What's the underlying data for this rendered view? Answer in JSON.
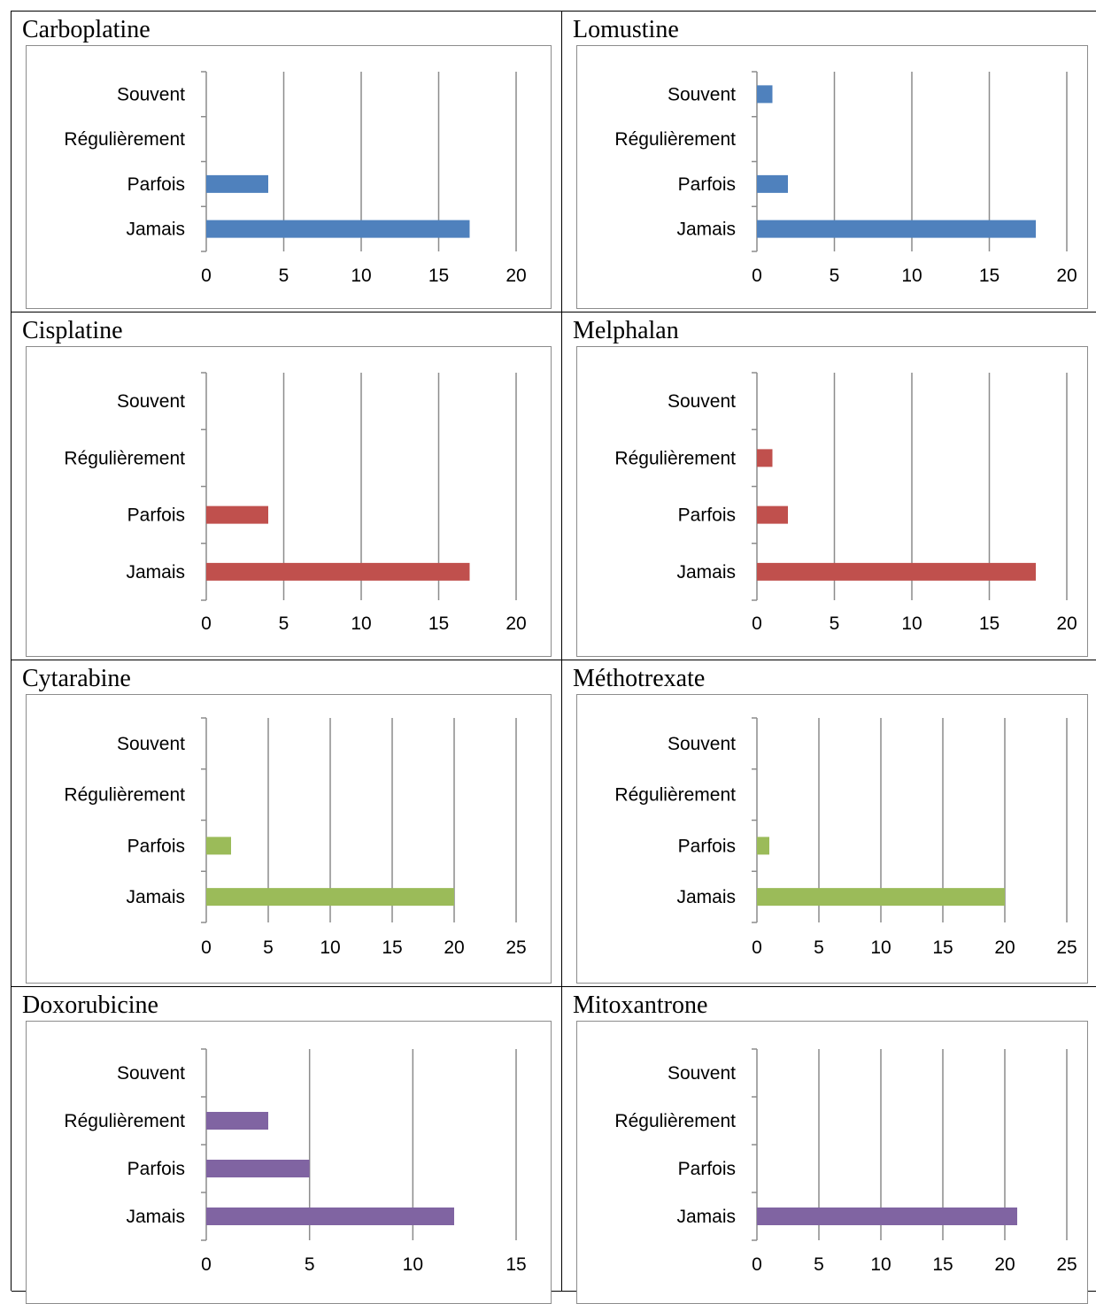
{
  "colors": {
    "blue": "#4f81bd",
    "red": "#c0504d",
    "green": "#9bbb59",
    "purple": "#8064a2",
    "grid": "#8c8c8c"
  },
  "panels": [
    {
      "title": "Carboplatine",
      "color": "blue"
    },
    {
      "title": "Lomustine",
      "color": "blue"
    },
    {
      "title": "Cisplatine",
      "color": "red"
    },
    {
      "title": "Melphalan",
      "color": "red"
    },
    {
      "title": "Cytarabine",
      "color": "green"
    },
    {
      "title": "Méthotrexate",
      "color": "green"
    },
    {
      "title": "Doxorubicine",
      "color": "purple"
    },
    {
      "title": "Mitoxantrone",
      "color": "purple"
    }
  ],
  "chart_data": [
    {
      "type": "bar",
      "orientation": "horizontal",
      "categories": [
        "Jamais",
        "Parfois",
        "Régulièrement",
        "Souvent"
      ],
      "values": [
        17,
        4,
        0,
        0
      ],
      "xlim": [
        0,
        20
      ],
      "xticks": [
        0,
        5,
        10,
        15,
        20
      ],
      "grid": true
    },
    {
      "type": "bar",
      "orientation": "horizontal",
      "categories": [
        "Jamais",
        "Parfois",
        "Régulièrement",
        "Souvent"
      ],
      "values": [
        18,
        2,
        0,
        1
      ],
      "xlim": [
        0,
        20
      ],
      "xticks": [
        0,
        5,
        10,
        15,
        20
      ],
      "grid": true
    },
    {
      "type": "bar",
      "orientation": "horizontal",
      "categories": [
        "Jamais",
        "Parfois",
        "Régulièrement",
        "Souvent"
      ],
      "values": [
        17,
        4,
        0,
        0
      ],
      "xlim": [
        0,
        20
      ],
      "xticks": [
        0,
        5,
        10,
        15,
        20
      ],
      "grid": true
    },
    {
      "type": "bar",
      "orientation": "horizontal",
      "categories": [
        "Jamais",
        "Parfois",
        "Régulièrement",
        "Souvent"
      ],
      "values": [
        18,
        2,
        1,
        0
      ],
      "xlim": [
        0,
        20
      ],
      "xticks": [
        0,
        5,
        10,
        15,
        20
      ],
      "grid": true
    },
    {
      "type": "bar",
      "orientation": "horizontal",
      "categories": [
        "Jamais",
        "Parfois",
        "Régulièrement",
        "Souvent"
      ],
      "values": [
        20,
        2,
        0,
        0
      ],
      "xlim": [
        0,
        25
      ],
      "xticks": [
        0,
        5,
        10,
        15,
        20,
        25
      ],
      "grid": true
    },
    {
      "type": "bar",
      "orientation": "horizontal",
      "categories": [
        "Jamais",
        "Parfois",
        "Régulièrement",
        "Souvent"
      ],
      "values": [
        20,
        1,
        0,
        0
      ],
      "xlim": [
        0,
        25
      ],
      "xticks": [
        0,
        5,
        10,
        15,
        20,
        25
      ],
      "grid": true
    },
    {
      "type": "bar",
      "orientation": "horizontal",
      "categories": [
        "Jamais",
        "Parfois",
        "Régulièrement",
        "Souvent"
      ],
      "values": [
        12,
        5,
        3,
        0
      ],
      "xlim": [
        0,
        15
      ],
      "xticks": [
        0,
        5,
        10,
        15
      ],
      "grid": true
    },
    {
      "type": "bar",
      "orientation": "horizontal",
      "categories": [
        "Jamais",
        "Parfois",
        "Régulièrement",
        "Souvent"
      ],
      "values": [
        21,
        0,
        0,
        0
      ],
      "xlim": [
        0,
        25
      ],
      "xticks": [
        0,
        5,
        10,
        15,
        20,
        25
      ],
      "grid": true
    }
  ]
}
